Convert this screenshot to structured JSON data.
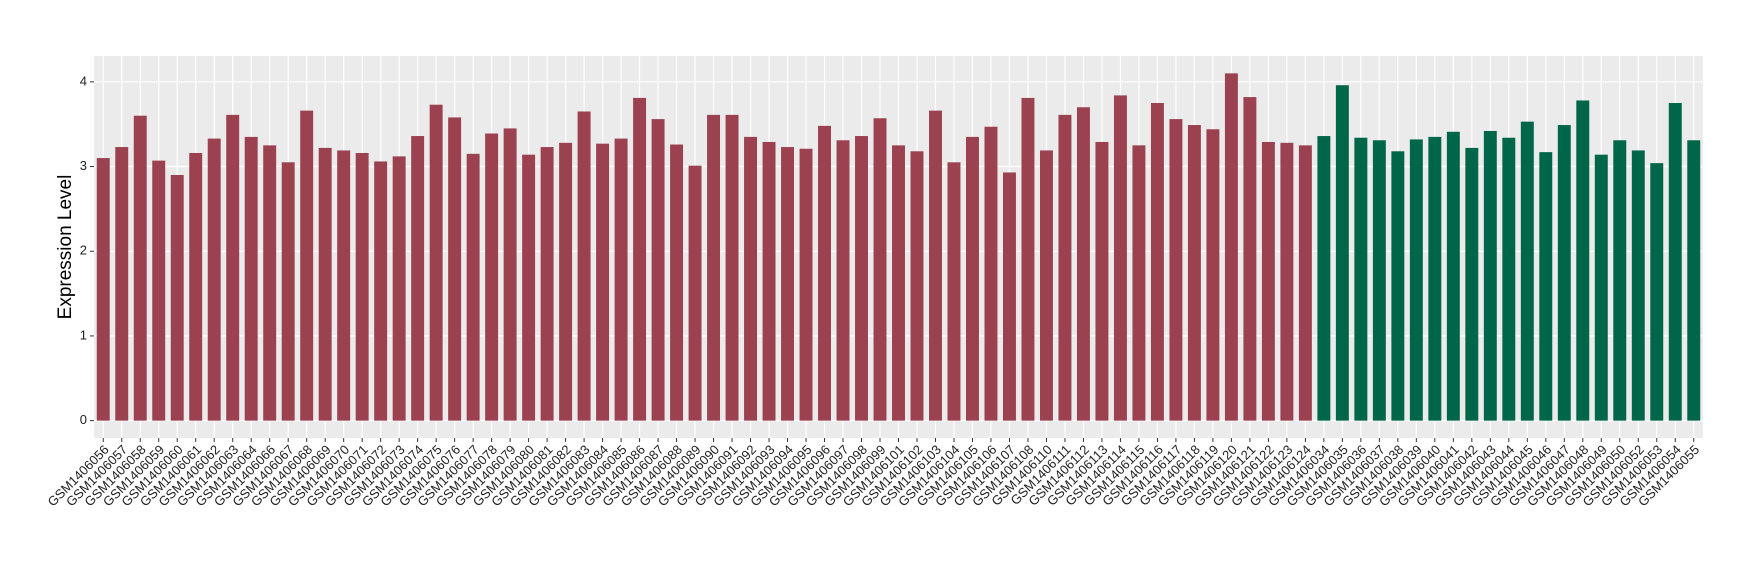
{
  "chart_data": {
    "type": "bar",
    "y_label": "Expression Level",
    "categories": [
      "GSM1406056",
      "GSM1406057",
      "GSM1406058",
      "GSM1406059",
      "GSM1406060",
      "GSM1406061",
      "GSM1406062",
      "GSM1406063",
      "GSM1406064",
      "GSM1406066",
      "GSM1406067",
      "GSM1406068",
      "GSM1406069",
      "GSM1406070",
      "GSM1406071",
      "GSM1406072",
      "GSM1406073",
      "GSM1406074",
      "GSM1406075",
      "GSM1406076",
      "GSM1406077",
      "GSM1406078",
      "GSM1406079",
      "GSM1406080",
      "GSM1406081",
      "GSM1406082",
      "GSM1406083",
      "GSM1406084",
      "GSM1406085",
      "GSM1406086",
      "GSM1406087",
      "GSM1406088",
      "GSM1406089",
      "GSM1406090",
      "GSM1406091",
      "GSM1406092",
      "GSM1406093",
      "GSM1406094",
      "GSM1406095",
      "GSM1406096",
      "GSM1406097",
      "GSM1406098",
      "GSM1406099",
      "GSM1406101",
      "GSM1406102",
      "GSM1406103",
      "GSM1406104",
      "GSM1406105",
      "GSM1406106",
      "GSM1406107",
      "GSM1406108",
      "GSM1406110",
      "GSM1406111",
      "GSM1406112",
      "GSM1406113",
      "GSM1406114",
      "GSM1406115",
      "GSM1406116",
      "GSM1406117",
      "GSM1406118",
      "GSM1406119",
      "GSM1406120",
      "GSM1406121",
      "GSM1406122",
      "GSM1406123",
      "GSM1406124",
      "GSM1406034",
      "GSM1406035",
      "GSM1406036",
      "GSM1406037",
      "GSM1406038",
      "GSM1406039",
      "GSM1406040",
      "GSM1406041",
      "GSM1406042",
      "GSM1406043",
      "GSM1406044",
      "GSM1406045",
      "GSM1406046",
      "GSM1406047",
      "GSM1406048",
      "GSM1406049",
      "GSM1406050",
      "GSM1406052",
      "GSM1406053",
      "GSM1406054",
      "GSM1406055"
    ],
    "values": [
      3.1,
      3.23,
      3.6,
      3.07,
      2.9,
      3.16,
      3.33,
      3.61,
      3.35,
      3.25,
      3.05,
      3.66,
      3.22,
      3.19,
      3.16,
      3.06,
      3.12,
      3.36,
      3.73,
      3.58,
      3.15,
      3.39,
      3.45,
      3.14,
      3.23,
      3.28,
      3.65,
      3.27,
      3.33,
      3.81,
      3.56,
      3.26,
      3.01,
      3.61,
      3.61,
      3.35,
      3.29,
      3.23,
      3.21,
      3.48,
      3.31,
      3.36,
      3.57,
      3.25,
      3.18,
      3.66,
      3.05,
      3.35,
      3.47,
      2.93,
      3.81,
      3.19,
      3.61,
      3.7,
      3.29,
      3.84,
      3.25,
      3.75,
      3.56,
      3.49,
      3.44,
      4.1,
      3.82,
      3.29,
      3.28,
      3.25,
      3.36,
      3.96,
      3.34,
      3.31,
      3.18,
      3.32,
      3.35,
      3.41,
      3.22,
      3.42,
      3.34,
      3.53,
      3.17,
      3.49,
      3.78,
      3.14,
      3.31,
      3.19,
      3.04,
      3.75,
      3.31
    ],
    "colors": [
      "#9b4150",
      "#9b4150",
      "#9b4150",
      "#9b4150",
      "#9b4150",
      "#9b4150",
      "#9b4150",
      "#9b4150",
      "#9b4150",
      "#9b4150",
      "#9b4150",
      "#9b4150",
      "#9b4150",
      "#9b4150",
      "#9b4150",
      "#9b4150",
      "#9b4150",
      "#9b4150",
      "#9b4150",
      "#9b4150",
      "#9b4150",
      "#9b4150",
      "#9b4150",
      "#9b4150",
      "#9b4150",
      "#9b4150",
      "#9b4150",
      "#9b4150",
      "#9b4150",
      "#9b4150",
      "#9b4150",
      "#9b4150",
      "#9b4150",
      "#9b4150",
      "#9b4150",
      "#9b4150",
      "#9b4150",
      "#9b4150",
      "#9b4150",
      "#9b4150",
      "#9b4150",
      "#9b4150",
      "#9b4150",
      "#9b4150",
      "#9b4150",
      "#9b4150",
      "#9b4150",
      "#9b4150",
      "#9b4150",
      "#9b4150",
      "#9b4150",
      "#9b4150",
      "#9b4150",
      "#9b4150",
      "#9b4150",
      "#9b4150",
      "#9b4150",
      "#9b4150",
      "#9b4150",
      "#9b4150",
      "#9b4150",
      "#9b4150",
      "#9b4150",
      "#9b4150",
      "#9b4150",
      "#9b4150",
      "#00664a",
      "#00664a",
      "#00664a",
      "#00664a",
      "#00664a",
      "#00664a",
      "#00664a",
      "#00664a",
      "#00664a",
      "#00664a",
      "#00664a",
      "#00664a",
      "#00664a",
      "#00664a",
      "#00664a",
      "#00664a",
      "#00664a",
      "#00664a",
      "#00664a",
      "#00664a",
      "#00664a"
    ],
    "ylim": [
      -0.205,
      4.305
    ],
    "yticks": [
      0,
      1,
      2,
      3,
      4
    ],
    "grid": true
  }
}
